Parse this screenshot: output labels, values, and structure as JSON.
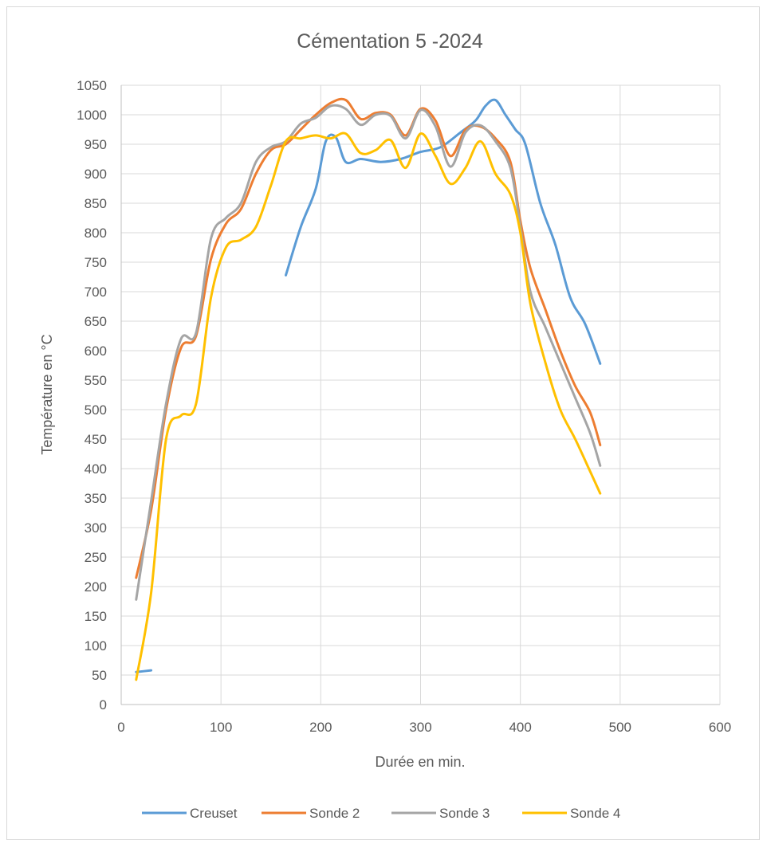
{
  "chart_data": {
    "type": "line",
    "title": "Cémentation 5 -2024",
    "xlabel": "Durée en min.",
    "ylabel": "Température en °C",
    "xlim": [
      0,
      600
    ],
    "ylim": [
      0,
      1050
    ],
    "xticks": [
      0,
      100,
      200,
      300,
      400,
      500,
      600
    ],
    "yticks": [
      0,
      50,
      100,
      150,
      200,
      250,
      300,
      350,
      400,
      450,
      500,
      550,
      600,
      650,
      700,
      750,
      800,
      850,
      900,
      950,
      1000,
      1050
    ],
    "grid": true,
    "legend_position": "bottom",
    "series": [
      {
        "name": "Creuset",
        "color": "#5b9bd5",
        "segments": [
          [
            [
              15,
              55
            ],
            [
              30,
              58
            ]
          ],
          [
            [
              165,
              728
            ],
            [
              180,
              810
            ],
            [
              195,
              875
            ],
            [
              205,
              955
            ],
            [
              215,
              962
            ],
            [
              225,
              920
            ],
            [
              240,
              925
            ],
            [
              260,
              920
            ],
            [
              280,
              925
            ],
            [
              300,
              937
            ],
            [
              320,
              945
            ],
            [
              340,
              970
            ],
            [
              355,
              990
            ],
            [
              365,
              1015
            ],
            [
              375,
              1025
            ],
            [
              385,
              1000
            ],
            [
              395,
              975
            ],
            [
              405,
              950
            ],
            [
              420,
              850
            ],
            [
              435,
              780
            ],
            [
              450,
              690
            ],
            [
              465,
              645
            ],
            [
              480,
              578
            ]
          ]
        ]
      },
      {
        "name": "Sonde 2",
        "color": "#ed7d31",
        "segments": [
          [
            [
              15,
              215
            ],
            [
              30,
              330
            ],
            [
              45,
              500
            ],
            [
              60,
              605
            ],
            [
              75,
              625
            ],
            [
              90,
              755
            ],
            [
              105,
              815
            ],
            [
              120,
              840
            ],
            [
              135,
              900
            ],
            [
              150,
              940
            ],
            [
              165,
              950
            ],
            [
              180,
              975
            ],
            [
              195,
              1000
            ],
            [
              210,
              1020
            ],
            [
              225,
              1025
            ],
            [
              240,
              993
            ],
            [
              255,
              1003
            ],
            [
              270,
              1000
            ],
            [
              285,
              965
            ],
            [
              300,
              1010
            ],
            [
              315,
              990
            ],
            [
              330,
              930
            ],
            [
              345,
              975
            ],
            [
              360,
              980
            ],
            [
              375,
              960
            ],
            [
              390,
              920
            ],
            [
              400,
              820
            ],
            [
              410,
              740
            ],
            [
              425,
              670
            ],
            [
              440,
              600
            ],
            [
              455,
              540
            ],
            [
              470,
              495
            ],
            [
              480,
              440
            ]
          ]
        ]
      },
      {
        "name": "Sonde 3",
        "color": "#a5a5a5",
        "segments": [
          [
            [
              15,
              178
            ],
            [
              30,
              345
            ],
            [
              45,
              510
            ],
            [
              60,
              620
            ],
            [
              75,
              630
            ],
            [
              90,
              790
            ],
            [
              105,
              825
            ],
            [
              120,
              850
            ],
            [
              135,
              920
            ],
            [
              150,
              945
            ],
            [
              165,
              955
            ],
            [
              180,
              985
            ],
            [
              195,
              995
            ],
            [
              210,
              1015
            ],
            [
              225,
              1010
            ],
            [
              240,
              983
            ],
            [
              255,
              1000
            ],
            [
              270,
              998
            ],
            [
              285,
              960
            ],
            [
              300,
              1008
            ],
            [
              315,
              980
            ],
            [
              330,
              912
            ],
            [
              345,
              970
            ],
            [
              360,
              982
            ],
            [
              375,
              955
            ],
            [
              390,
              910
            ],
            [
              400,
              810
            ],
            [
              410,
              700
            ],
            [
              425,
              640
            ],
            [
              440,
              580
            ],
            [
              455,
              520
            ],
            [
              470,
              460
            ],
            [
              480,
              405
            ]
          ]
        ]
      },
      {
        "name": "Sonde 4",
        "color": "#ffc000",
        "segments": [
          [
            [
              15,
              42
            ],
            [
              30,
              190
            ],
            [
              45,
              450
            ],
            [
              60,
              490
            ],
            [
              75,
              510
            ],
            [
              90,
              690
            ],
            [
              105,
              775
            ],
            [
              120,
              788
            ],
            [
              135,
              810
            ],
            [
              150,
              880
            ],
            [
              165,
              955
            ],
            [
              180,
              960
            ],
            [
              195,
              965
            ],
            [
              210,
              960
            ],
            [
              225,
              968
            ],
            [
              240,
              935
            ],
            [
              255,
              940
            ],
            [
              270,
              957
            ],
            [
              285,
              910
            ],
            [
              300,
              968
            ],
            [
              315,
              930
            ],
            [
              330,
              883
            ],
            [
              345,
              910
            ],
            [
              360,
              955
            ],
            [
              375,
              900
            ],
            [
              390,
              865
            ],
            [
              400,
              800
            ],
            [
              410,
              680
            ],
            [
              425,
              580
            ],
            [
              440,
              500
            ],
            [
              455,
              450
            ],
            [
              470,
              395
            ],
            [
              480,
              358
            ]
          ]
        ]
      }
    ]
  }
}
